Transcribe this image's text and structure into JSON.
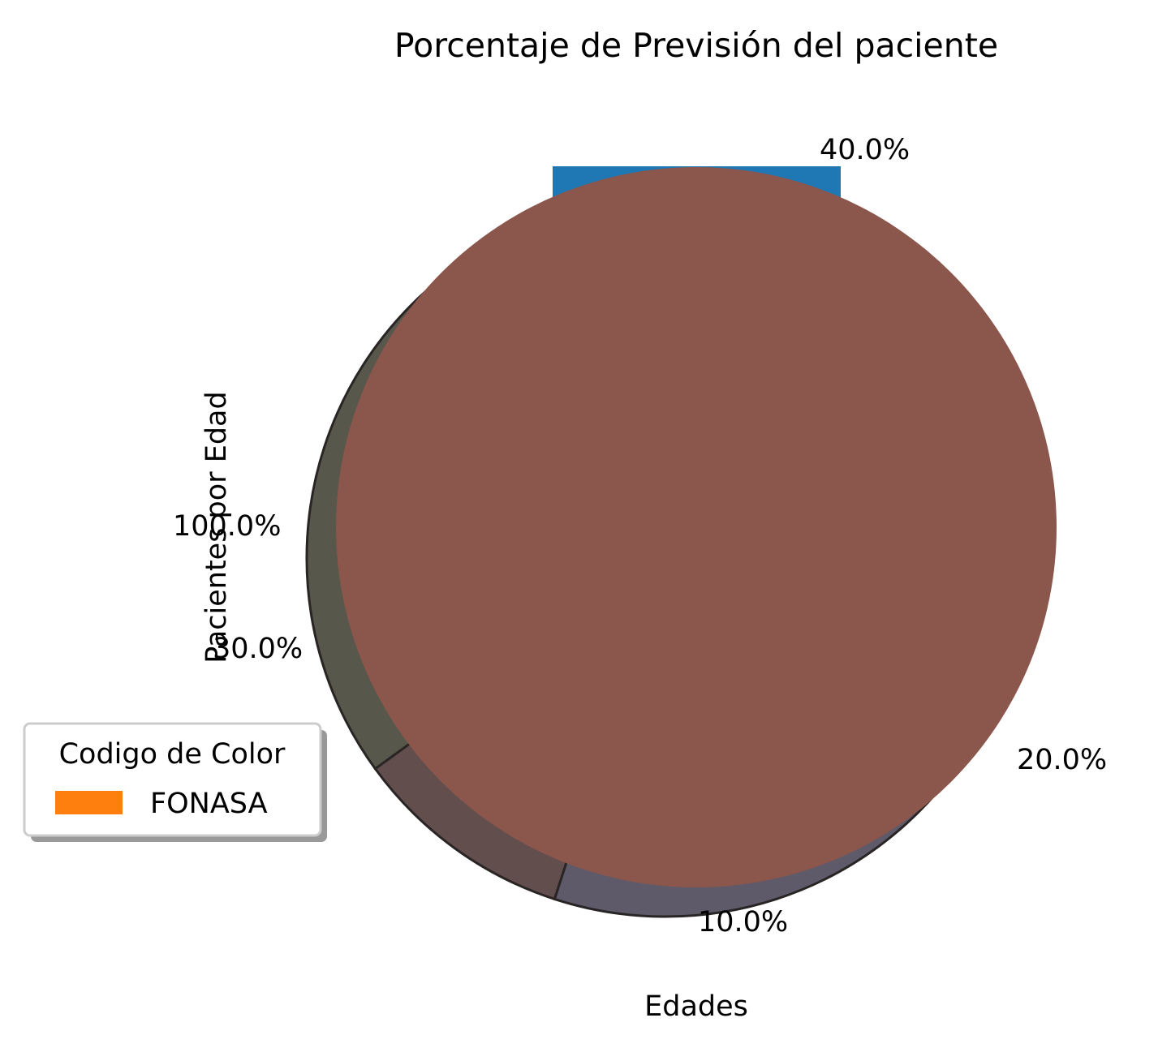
{
  "chart_data": {
    "type": "pie",
    "title": "Porcentaje de Previsión del paciente",
    "xlabel": "Edades",
    "ylabel": "Pacientes por Edad",
    "pct_labels": [
      "40.0%",
      "20.0%",
      "10.0%",
      "30.0%",
      "100.0%"
    ],
    "slices": [
      {
        "pct_label": "40.0%",
        "value": 40,
        "color": "#1f77b4"
      },
      {
        "pct_label": "20.0%",
        "value": 20,
        "color": "#5e5a6a"
      },
      {
        "pct_label": "10.0%",
        "value": 10,
        "color": "#634e4e"
      },
      {
        "pct_label": "30.0%",
        "value": 30,
        "color": "#57574b"
      }
    ],
    "overlay_slice": {
      "pct_label": "100.0%",
      "value": 100,
      "color": "#8b564c"
    },
    "legend": {
      "title": "Codigo de Color",
      "placement": "lower-left",
      "entries": [
        {
          "label": "FONASA",
          "color": "#ff7f0e"
        }
      ]
    }
  }
}
